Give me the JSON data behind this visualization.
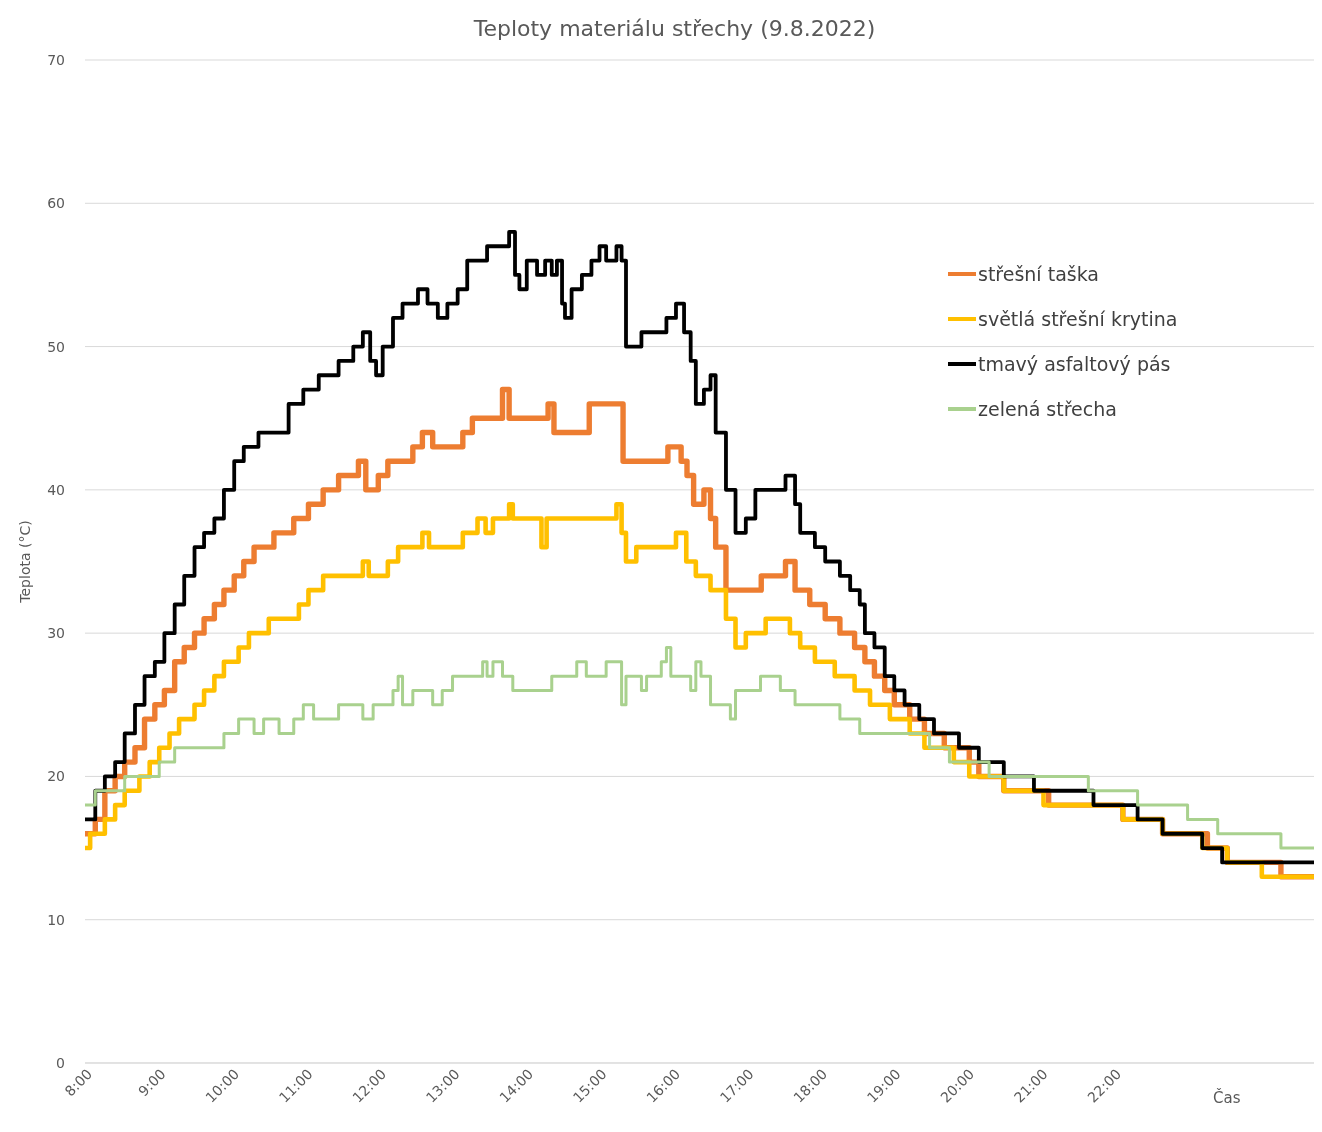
{
  "chart_data": {
    "type": "step",
    "title": "Teploty materiálu střechy (9.8.2022)",
    "xlabel": "Čas",
    "ylabel": "Teplota (°C)",
    "xlim": [
      8,
      24.72
    ],
    "xticks": [
      {
        "value": 8,
        "label": "8:00"
      },
      {
        "value": 9,
        "label": "9:00"
      },
      {
        "value": 10,
        "label": "10:00"
      },
      {
        "value": 11,
        "label": "11:00"
      },
      {
        "value": 12,
        "label": "12:00"
      },
      {
        "value": 13,
        "label": "13:00"
      },
      {
        "value": 14,
        "label": "14:00"
      },
      {
        "value": 15,
        "label": "15:00"
      },
      {
        "value": 16,
        "label": "16:00"
      },
      {
        "value": 17,
        "label": "17:00"
      },
      {
        "value": 18,
        "label": "18:00"
      },
      {
        "value": 19,
        "label": "19:00"
      },
      {
        "value": 20,
        "label": "20:00"
      },
      {
        "value": 21,
        "label": "21:00"
      },
      {
        "value": 22,
        "label": "22:00"
      }
    ],
    "ylim": [
      0,
      70
    ],
    "yticks": [
      0,
      10,
      20,
      30,
      40,
      50,
      60,
      70
    ],
    "grid": "y",
    "legend": "top right",
    "series": [
      {
        "name": "střešní taška",
        "color": "#ed7d31",
        "x": [
          8,
          8.14,
          8.27,
          8.41,
          8.54,
          8.68,
          8.81,
          8.95,
          9.08,
          9.22,
          9.35,
          9.49,
          9.62,
          9.76,
          9.89,
          10.03,
          10.16,
          10.3,
          10.57,
          10.84,
          11.04,
          11.24,
          11.45,
          11.72,
          11.82,
          11.99,
          12.12,
          12.46,
          12.59,
          12.73,
          13.14,
          13.27,
          13.68,
          13.77,
          14.3,
          14.38,
          14.86,
          15.32,
          15.93,
          16.11,
          16.19,
          16.28,
          16.42,
          16.51,
          16.58,
          16.72,
          17.2,
          17.53,
          17.66,
          17.86,
          18.07,
          18.27,
          18.47,
          18.61,
          18.74,
          18.88,
          19.01,
          19.22,
          19.42,
          19.69,
          20.03,
          20.16,
          20.5,
          21.11,
          22.12,
          22.66,
          23.27,
          23.54,
          24.27,
          24.72
        ],
        "values": [
          16,
          17,
          19,
          20,
          21,
          22,
          24,
          25,
          26,
          28,
          29,
          30,
          31,
          32,
          33,
          34,
          35,
          36,
          37,
          38,
          39,
          40,
          41,
          42,
          40,
          41,
          42,
          43,
          44,
          43,
          44,
          45,
          47,
          45,
          46,
          44,
          46,
          42,
          43,
          42,
          41,
          39,
          40,
          38,
          36,
          33,
          34,
          35,
          33,
          32,
          31,
          30,
          29,
          28,
          27,
          26,
          25,
          24,
          23,
          22,
          21,
          20,
          19,
          18,
          17,
          16,
          15,
          14,
          13,
          13
        ]
      },
      {
        "name": "světlá střešní krytina",
        "color": "#ffc000",
        "x": [
          8,
          8.07,
          8.27,
          8.41,
          8.54,
          8.74,
          8.88,
          9.01,
          9.15,
          9.28,
          9.49,
          9.62,
          9.76,
          9.89,
          10.09,
          10.23,
          10.5,
          10.91,
          11.04,
          11.24,
          11.78,
          11.86,
          12.12,
          12.26,
          12.59,
          12.68,
          13.14,
          13.34,
          13.45,
          13.55,
          13.77,
          13.82,
          14.21,
          14.28,
          15.23,
          15.3,
          15.36,
          15.5,
          16.04,
          16.18,
          16.31,
          16.51,
          16.72,
          16.85,
          16.99,
          17.26,
          17.59,
          17.73,
          17.93,
          18.2,
          18.47,
          18.68,
          18.95,
          19.22,
          19.42,
          19.82,
          20.03,
          20.5,
          21.04,
          22.12,
          22.66,
          23.2,
          23.54,
          24.01,
          24.72
        ],
        "values": [
          15,
          16,
          17,
          18,
          19,
          20,
          21,
          22,
          23,
          24,
          25,
          26,
          27,
          28,
          29,
          30,
          31,
          32,
          33,
          34,
          35,
          34,
          35,
          36,
          37,
          36,
          37,
          38,
          37,
          38,
          39,
          38,
          36,
          38,
          39,
          37,
          35,
          36,
          37,
          35,
          34,
          33,
          31,
          29,
          30,
          31,
          30,
          29,
          28,
          27,
          26,
          25,
          24,
          23,
          22,
          21,
          20,
          19,
          18,
          17,
          16,
          15,
          14,
          13,
          13
        ]
      },
      {
        "name": "tmavý asfaltový pás",
        "color": "#000000",
        "x": [
          8,
          8.14,
          8.27,
          8.41,
          8.54,
          8.68,
          8.81,
          8.95,
          9.08,
          9.22,
          9.35,
          9.49,
          9.62,
          9.76,
          9.89,
          10.03,
          10.16,
          10.36,
          10.77,
          10.97,
          11.18,
          11.45,
          11.65,
          11.78,
          11.88,
          11.96,
          12.05,
          12.19,
          12.32,
          12.53,
          12.66,
          12.8,
          12.93,
          13.07,
          13.2,
          13.47,
          13.77,
          13.85,
          13.91,
          14.01,
          14.15,
          14.26,
          14.35,
          14.42,
          14.49,
          14.53,
          14.62,
          14.76,
          14.89,
          15,
          15.09,
          15.23,
          15.3,
          15.36,
          15.57,
          15.91,
          16.04,
          16.15,
          16.24,
          16.31,
          16.42,
          16.51,
          16.58,
          16.72,
          16.85,
          16.99,
          17.12,
          17.53,
          17.66,
          17.73,
          17.93,
          18.07,
          18.27,
          18.41,
          18.54,
          18.61,
          18.74,
          18.88,
          19.01,
          19.15,
          19.35,
          19.55,
          19.89,
          20.16,
          20.5,
          20.91,
          21.72,
          22.32,
          22.66,
          23.2,
          23.47,
          24.72
        ],
        "values": [
          17,
          19,
          20,
          21,
          23,
          25,
          27,
          28,
          30,
          32,
          34,
          36,
          37,
          38,
          40,
          42,
          43,
          44,
          46,
          47,
          48,
          49,
          50,
          51,
          49,
          48,
          50,
          52,
          53,
          54,
          53,
          52,
          53,
          54,
          56,
          57,
          58,
          55,
          54,
          56,
          55,
          56,
          55,
          56,
          53,
          52,
          54,
          55,
          56,
          57,
          56,
          57,
          56,
          50,
          51,
          52,
          53,
          51,
          49,
          46,
          47,
          48,
          44,
          40,
          37,
          38,
          40,
          41,
          39,
          37,
          36,
          35,
          34,
          33,
          32,
          30,
          29,
          27,
          26,
          25,
          24,
          23,
          22,
          21,
          20,
          19,
          18,
          17,
          16,
          15,
          14,
          14
        ]
      },
      {
        "name": "zelená střecha",
        "color": "#a9d18e",
        "x": [
          8,
          8.14,
          8.54,
          9.01,
          9.22,
          9.89,
          10.09,
          10.3,
          10.43,
          10.64,
          10.84,
          10.97,
          11.11,
          11.45,
          11.78,
          11.92,
          12.19,
          12.26,
          12.32,
          12.46,
          12.73,
          12.86,
          13,
          13.41,
          13.47,
          13.55,
          13.68,
          13.82,
          14.35,
          14.69,
          14.82,
          15.09,
          15.3,
          15.36,
          15.57,
          15.64,
          15.84,
          15.91,
          15.97,
          16.24,
          16.31,
          16.38,
          16.51,
          16.78,
          16.85,
          17.19,
          17.46,
          17.66,
          18.27,
          18.54,
          19.49,
          19.76,
          20.3,
          21.65,
          22.32,
          23,
          23.41,
          24.2,
          24.27,
          24.72
        ],
        "values": [
          18,
          19,
          20,
          21,
          22,
          23,
          24,
          23,
          24,
          23,
          24,
          25,
          24,
          25,
          24,
          25,
          26,
          27,
          25,
          26,
          25,
          26,
          27,
          28,
          27,
          28,
          27,
          26,
          27,
          28,
          27,
          28,
          25,
          27,
          26,
          27,
          28,
          29,
          27,
          26,
          28,
          27,
          25,
          24,
          26,
          27,
          26,
          25,
          24,
          23,
          22,
          21,
          20,
          19,
          18,
          17,
          16,
          16,
          15,
          15
        ]
      }
    ]
  }
}
